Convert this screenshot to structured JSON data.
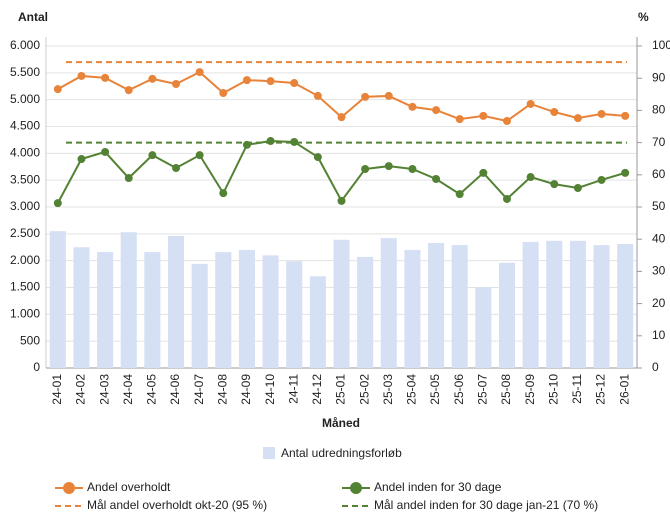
{
  "chart_data": {
    "type": "bar_line",
    "y_label": "Antal",
    "y2_label": "%",
    "x_label": "Måned",
    "categories": [
      "24-01",
      "24-02",
      "24-03",
      "24-04",
      "24-05",
      "24-06",
      "24-07",
      "24-08",
      "24-09",
      "24-10",
      "24-11",
      "24-12",
      "25-01",
      "25-02",
      "25-03",
      "25-04",
      "25-05",
      "25-06",
      "25-07",
      "25-08",
      "25-09",
      "25-10",
      "25-11",
      "25-12",
      "26-01"
    ],
    "series": [
      {
        "name": "Antal udredningsforløb",
        "type": "bar",
        "color": "#d6e0f5",
        "values": [
          2550,
          2250,
          2160,
          2530,
          2160,
          2460,
          1940,
          2160,
          2200,
          2100,
          1990,
          1710,
          2390,
          2070,
          2420,
          2200,
          2330,
          2290,
          1510,
          1960,
          2350,
          2370,
          2370,
          2290,
          2310
        ]
      },
      {
        "name": "Andel overholdt",
        "type": "line",
        "axis": "y2",
        "color": "#e8833a",
        "markers": true,
        "values": [
          86.6,
          90.7,
          90.1,
          86.3,
          89.8,
          88.2,
          91.9,
          85.4,
          89.4,
          89.1,
          88.5,
          84.5,
          77.9,
          84.2,
          84.5,
          81.1,
          80.1,
          77.3,
          78.3,
          76.7,
          82.0,
          79.5,
          77.6,
          78.9,
          78.3
        ]
      },
      {
        "name": "Andel inden for 30 dage",
        "type": "line",
        "axis": "y2",
        "color": "#548235",
        "markers": true,
        "values": [
          51.2,
          64.9,
          67.1,
          59.0,
          66.1,
          62.1,
          66.1,
          54.3,
          69.3,
          70.5,
          70.2,
          65.5,
          51.9,
          61.8,
          62.7,
          61.8,
          58.7,
          54.0,
          60.6,
          52.5,
          59.3,
          57.1,
          55.9,
          58.4,
          60.6
        ]
      },
      {
        "name": "Mål andel overholdt okt-20 (95 %)",
        "type": "line",
        "axis": "y2",
        "color": "#e8833a",
        "dashed": true,
        "values": [
          95,
          95,
          95,
          95,
          95,
          95,
          95,
          95,
          95,
          95,
          95,
          95,
          95,
          95,
          95,
          95,
          95,
          95,
          95,
          95,
          95,
          95,
          95,
          95,
          95
        ]
      },
      {
        "name": "Mål andel inden for 30 dage jan-21 (70 %)",
        "type": "line",
        "axis": "y2",
        "color": "#548235",
        "dashed": true,
        "values": [
          70,
          70,
          70,
          70,
          70,
          70,
          70,
          70,
          70,
          70,
          70,
          70,
          70,
          70,
          70,
          70,
          70,
          70,
          70,
          70,
          70,
          70,
          70,
          70,
          70
        ]
      }
    ],
    "ylim": [
      0,
      6000
    ],
    "yticks": [
      0,
      500,
      {
        "value": 1000,
        "label": "1.000"
      },
      {
        "value": 1500,
        "label": "1.500"
      },
      {
        "value": 2000,
        "label": "2.000"
      },
      {
        "value": 2500,
        "label": "2.500"
      },
      {
        "value": 3000,
        "label": "3.000"
      },
      {
        "value": 3500,
        "label": "3.500"
      },
      {
        "value": 4000,
        "label": "4.000"
      },
      {
        "value": 4500,
        "label": "4.500"
      },
      {
        "value": 5000,
        "label": "5.000"
      },
      {
        "value": 5500,
        "label": "5.500"
      },
      {
        "value": 6000,
        "label": "6.000"
      }
    ],
    "y2lim": [
      0,
      100
    ],
    "y2ticks": [
      0,
      10,
      20,
      30,
      40,
      50,
      60,
      70,
      80,
      90,
      100
    ],
    "grid": true
  }
}
